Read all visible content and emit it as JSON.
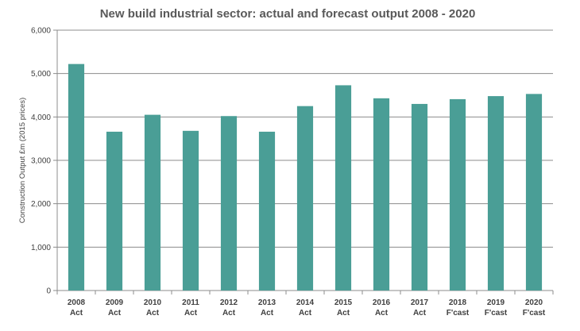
{
  "chart_data": {
    "type": "bar",
    "title": "New build industrial sector: actual and forecast output 2008 - 2020",
    "ylabel": "Construction Output £m (2015 prices)",
    "xlabel": "",
    "ylim": [
      0,
      6000
    ],
    "yticks": [
      0,
      1000,
      2000,
      3000,
      4000,
      5000,
      6000
    ],
    "ytick_labels": [
      "0",
      "1,000",
      "2,000",
      "3,000",
      "4,000",
      "5,000",
      "6,000"
    ],
    "grid": true,
    "categories": [
      {
        "year": "2008",
        "kind": "Act"
      },
      {
        "year": "2009",
        "kind": "Act"
      },
      {
        "year": "2010",
        "kind": "Act"
      },
      {
        "year": "2011",
        "kind": "Act"
      },
      {
        "year": "2012",
        "kind": "Act"
      },
      {
        "year": "2013",
        "kind": "Act"
      },
      {
        "year": "2014",
        "kind": "Act"
      },
      {
        "year": "2015",
        "kind": "Act"
      },
      {
        "year": "2016",
        "kind": "Act"
      },
      {
        "year": "2017",
        "kind": "Act"
      },
      {
        "year": "2018",
        "kind": "F'cast"
      },
      {
        "year": "2019",
        "kind": "F'cast"
      },
      {
        "year": "2020",
        "kind": "F'cast"
      }
    ],
    "values": [
      5220,
      3660,
      4050,
      3680,
      4020,
      3660,
      4250,
      4730,
      4430,
      4300,
      4410,
      4480,
      4530
    ],
    "bar_color": "#4a9e96"
  }
}
